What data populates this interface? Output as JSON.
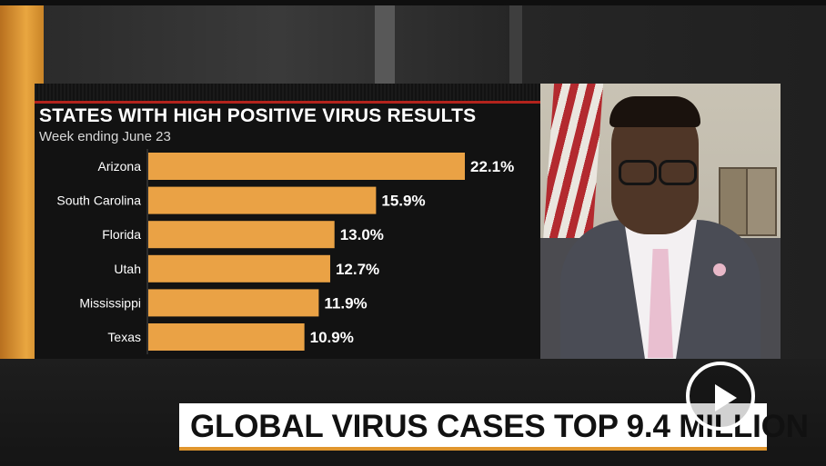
{
  "colors": {
    "bar": "#eaa245",
    "accent_red": "#b3231c",
    "headline_underline": "#e0962e"
  },
  "chart_data": {
    "type": "bar",
    "orientation": "horizontal",
    "title": "STATES WITH HIGH POSITIVE VIRUS RESULTS",
    "subtitle": "Week ending June 23",
    "categories": [
      "Arizona",
      "South Carolina",
      "Florida",
      "Utah",
      "Mississippi",
      "Texas"
    ],
    "values": [
      22.1,
      15.9,
      13.0,
      12.7,
      11.9,
      10.9
    ],
    "value_labels": [
      "22.1%",
      "15.9%",
      "13.0%",
      "12.7%",
      "11.9%",
      "10.9%"
    ],
    "unit": "%",
    "xlim": [
      0,
      22.1
    ],
    "grid": false,
    "legend": "none"
  },
  "headline": {
    "text": "GLOBAL VIRUS CASES TOP 9.4 MILLION"
  },
  "video": {
    "play_icon": "play-icon"
  }
}
